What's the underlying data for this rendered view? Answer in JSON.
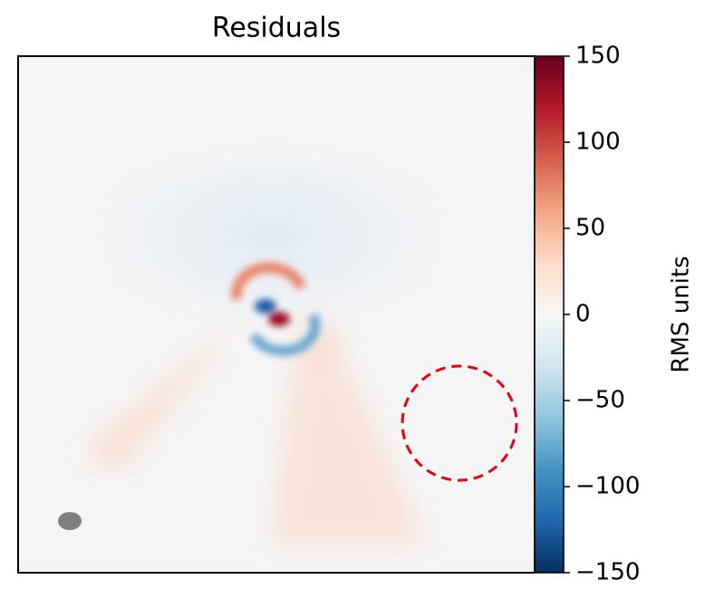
{
  "chart_data": {
    "type": "image",
    "title": "Residuals",
    "colorbar_label": "RMS units",
    "clim": [
      -150,
      150
    ],
    "cticks": [
      {
        "value": -150,
        "label": "−150"
      },
      {
        "value": -100,
        "label": "−100"
      },
      {
        "value": -50,
        "label": "−50"
      },
      0,
      50,
      100,
      150
    ],
    "colormap": [
      "#053061",
      "#2166ac",
      "#4393c3",
      "#92c5de",
      "#d1e5f0",
      "#f7f7f7",
      "#fddbc7",
      "#f4a582",
      "#d6604d",
      "#b2182b",
      "#67001f"
    ]
  }
}
